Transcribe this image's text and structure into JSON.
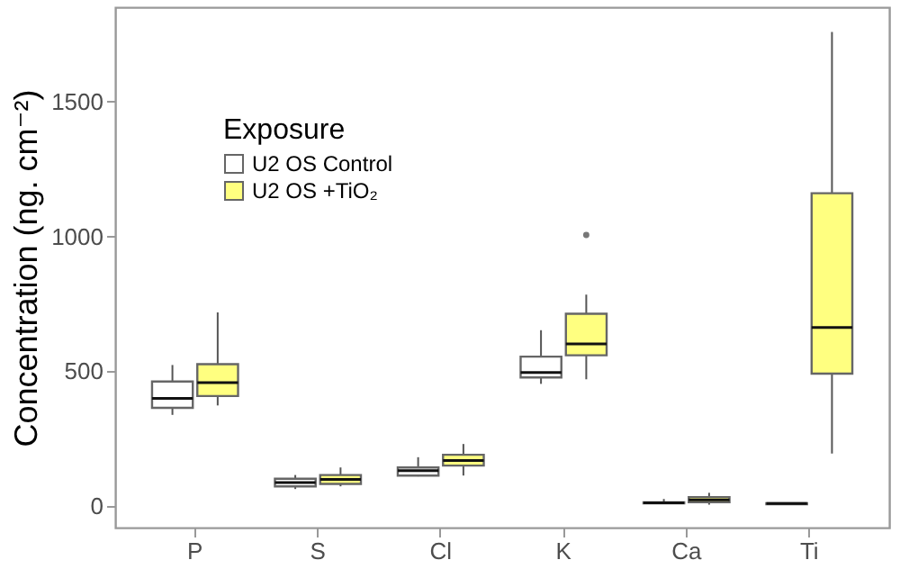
{
  "chart_data": {
    "type": "box",
    "ylabel": "Concentration (ng. cm⁻²)",
    "legend_title": "Exposure",
    "legend": "top left",
    "grid": false,
    "categories": [
      "P",
      "S",
      "Cl",
      "K",
      "Ca",
      "Ti"
    ],
    "ylim": [
      -80,
      1850
    ],
    "yticks": [
      0,
      500,
      1000,
      1500
    ],
    "series": [
      {
        "name": "U2 OS Control",
        "color": "#ffffff",
        "boxes": [
          {
            "low": 338,
            "q1": 364,
            "median": 399,
            "q3": 462,
            "high": 523
          },
          {
            "low": 63,
            "q1": 73,
            "median": 87,
            "q3": 101,
            "high": 115
          },
          {
            "low": 110,
            "q1": 113,
            "median": 131,
            "q3": 143,
            "high": 181
          },
          {
            "low": 453,
            "q1": 477,
            "median": 495,
            "q3": 554,
            "high": 652
          },
          {
            "low": 8,
            "q1": 10,
            "median": 12,
            "q3": 14,
            "high": 26
          },
          {
            "low": 5,
            "q1": 7,
            "median": 9,
            "q3": 10,
            "high": 12
          }
        ]
      },
      {
        "name": "U2 OS +TiO₂",
        "color": "#ffff80",
        "boxes": [
          {
            "low": 373,
            "q1": 408,
            "median": 458,
            "q3": 526,
            "high": 718
          },
          {
            "low": 73,
            "q1": 82,
            "median": 99,
            "q3": 115,
            "high": 143
          },
          {
            "low": 113,
            "q1": 150,
            "median": 169,
            "q3": 190,
            "high": 230
          },
          {
            "low": 470,
            "q1": 559,
            "median": 601,
            "q3": 713,
            "high": 784,
            "outliers": [
              1005
            ]
          },
          {
            "low": 5,
            "q1": 14,
            "median": 23,
            "q3": 33,
            "high": 49
          },
          {
            "low": 195,
            "q1": 491,
            "median": 662,
            "q3": 1160,
            "high": 1758
          }
        ]
      }
    ]
  }
}
